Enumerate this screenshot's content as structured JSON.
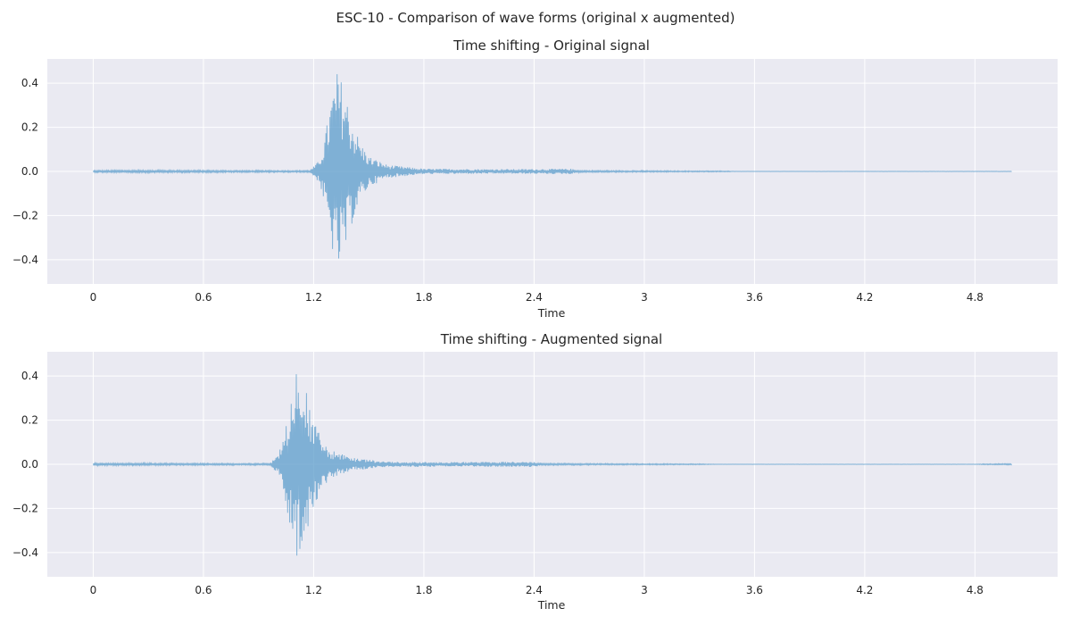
{
  "figure": {
    "suptitle": "ESC-10 - Comparison of wave forms (original x augmented)",
    "background": "#ffffff",
    "axes_facecolor": "#eaeaf2",
    "grid_color": "#ffffff",
    "wave_color": "#5b9ccb"
  },
  "chart_data": [
    {
      "type": "line",
      "title": "Time shifting - Original signal",
      "xlabel": "Time",
      "ylabel": "",
      "xlim": [
        -0.25,
        5.25
      ],
      "ylim": [
        -0.51,
        0.51
      ],
      "grid": true,
      "x_ticks": [
        0,
        0.6,
        1.2,
        1.8,
        2.4,
        3.0,
        3.6,
        4.2,
        4.8
      ],
      "x_tick_labels": [
        "0",
        "0.6",
        "1.2",
        "1.8",
        "2.4",
        "3",
        "3.6",
        "4.2",
        "4.8"
      ],
      "y_ticks": [
        0.4,
        0.2,
        0.0,
        -0.2,
        -0.4
      ],
      "y_tick_labels": [
        "0.4",
        "0.2",
        "0.0",
        "−0.2",
        "−0.4"
      ],
      "series": [
        {
          "envelope": [
            {
              "t": 0.0,
              "amp": 0.004
            },
            {
              "t": 0.2,
              "amp": 0.006
            },
            {
              "t": 0.5,
              "amp": 0.005
            },
            {
              "t": 0.8,
              "amp": 0.004
            },
            {
              "t": 1.18,
              "amp": 0.004
            },
            {
              "t": 1.23,
              "amp": 0.05
            },
            {
              "t": 1.26,
              "amp": 0.15
            },
            {
              "t": 1.3,
              "amp": 0.36
            },
            {
              "t": 1.33,
              "amp": 0.46
            },
            {
              "t": 1.37,
              "amp": 0.38
            },
            {
              "t": 1.4,
              "amp": 0.26
            },
            {
              "t": 1.45,
              "amp": 0.14
            },
            {
              "t": 1.5,
              "amp": 0.07
            },
            {
              "t": 1.6,
              "amp": 0.03
            },
            {
              "t": 1.8,
              "amp": 0.012
            },
            {
              "t": 2.2,
              "amp": 0.01
            },
            {
              "t": 2.6,
              "amp": 0.012
            },
            {
              "t": 2.65,
              "amp": 0.004
            },
            {
              "t": 3.45,
              "amp": 0.002
            },
            {
              "t": 3.5,
              "amp": 0.0005
            },
            {
              "t": 5.0,
              "amp": 0.0004
            }
          ]
        }
      ]
    },
    {
      "type": "line",
      "title": "Time shifting - Augmented signal",
      "xlabel": "Time",
      "ylabel": "",
      "xlim": [
        -0.25,
        5.25
      ],
      "ylim": [
        -0.51,
        0.51
      ],
      "grid": true,
      "x_ticks": [
        0,
        0.6,
        1.2,
        1.8,
        2.4,
        3.0,
        3.6,
        4.2,
        4.8
      ],
      "x_tick_labels": [
        "0",
        "0.6",
        "1.2",
        "1.8",
        "2.4",
        "3",
        "3.6",
        "4.2",
        "4.8"
      ],
      "y_ticks": [
        0.4,
        0.2,
        0.0,
        -0.2,
        -0.4
      ],
      "y_tick_labels": [
        "0.4",
        "0.2",
        "0.0",
        "−0.2",
        "−0.4"
      ],
      "series": [
        {
          "envelope": [
            {
              "t": 0.0,
              "amp": 0.006
            },
            {
              "t": 0.3,
              "amp": 0.005
            },
            {
              "t": 0.6,
              "amp": 0.004
            },
            {
              "t": 0.96,
              "amp": 0.004
            },
            {
              "t": 1.01,
              "amp": 0.05
            },
            {
              "t": 1.04,
              "amp": 0.15
            },
            {
              "t": 1.08,
              "amp": 0.35
            },
            {
              "t": 1.11,
              "amp": 0.46
            },
            {
              "t": 1.15,
              "amp": 0.38
            },
            {
              "t": 1.18,
              "amp": 0.26
            },
            {
              "t": 1.23,
              "amp": 0.14
            },
            {
              "t": 1.28,
              "amp": 0.07
            },
            {
              "t": 1.4,
              "amp": 0.03
            },
            {
              "t": 1.6,
              "amp": 0.012
            },
            {
              "t": 2.0,
              "amp": 0.01
            },
            {
              "t": 2.4,
              "amp": 0.012
            },
            {
              "t": 2.45,
              "amp": 0.004
            },
            {
              "t": 3.3,
              "amp": 0.002
            },
            {
              "t": 3.4,
              "amp": 0.0005
            },
            {
              "t": 4.8,
              "amp": 0.0004
            },
            {
              "t": 4.85,
              "amp": 0.002
            },
            {
              "t": 5.0,
              "amp": 0.003
            }
          ]
        }
      ]
    }
  ]
}
